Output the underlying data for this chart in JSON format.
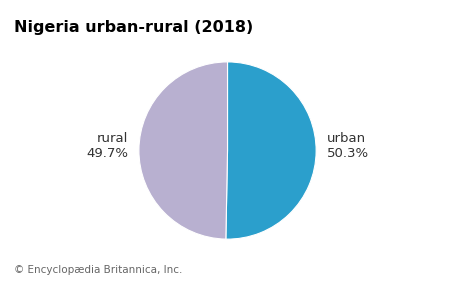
{
  "title": "Nigeria urban-rural (2018)",
  "labels": [
    "urban",
    "rural"
  ],
  "values": [
    50.3,
    49.7
  ],
  "colors": [
    "#2B9FCC",
    "#B8B0D0"
  ],
  "label_texts_line1": [
    "urban",
    "rural"
  ],
  "label_texts_line2": [
    "50.3%",
    "49.7%"
  ],
  "startangle": 90,
  "footnote": "© Encyclopædia Britannica, Inc.",
  "title_fontsize": 11.5,
  "label_fontsize": 9.5,
  "footnote_fontsize": 7.5,
  "background_color": "#ffffff"
}
